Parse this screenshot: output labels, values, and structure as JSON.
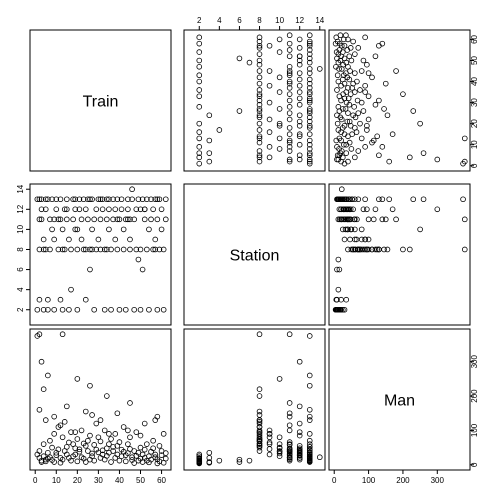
{
  "chart_data": {
    "type": "scatter",
    "subtype": "pairs-matrix",
    "variables": [
      "Train",
      "Station",
      "Man"
    ],
    "ranges": {
      "Train": [
        0,
        62
      ],
      "Station": [
        1,
        14
      ],
      "Man": [
        0,
        380
      ]
    },
    "ticks": {
      "Train": [
        0,
        10,
        20,
        30,
        40,
        50,
        60
      ],
      "Station": [
        2,
        4,
        6,
        8,
        10,
        12,
        14
      ],
      "Man": [
        0,
        100,
        200,
        300
      ]
    },
    "tick_label_sides": {
      "top": [
        "",
        "Station",
        ""
      ],
      "bottom": [
        "Train",
        "",
        "Man"
      ],
      "left": [
        "",
        "Station",
        ""
      ],
      "right": [
        "Train",
        "",
        "Man"
      ]
    },
    "point_symbol": "open-circle",
    "point_color": "#000000",
    "records": [
      [
        1,
        2,
        30
      ],
      [
        2,
        3,
        20
      ],
      [
        2,
        8,
        40
      ],
      [
        3,
        11,
        12
      ],
      [
        3,
        13,
        8
      ],
      [
        4,
        2,
        25
      ],
      [
        4,
        9,
        60
      ],
      [
        5,
        12,
        15
      ],
      [
        5,
        13,
        10
      ],
      [
        6,
        2,
        18
      ],
      [
        6,
        3,
        35
      ],
      [
        7,
        8,
        70
      ],
      [
        7,
        11,
        22
      ],
      [
        8,
        13,
        14
      ],
      [
        8,
        10,
        50
      ],
      [
        9,
        2,
        8
      ],
      [
        9,
        9,
        90
      ],
      [
        10,
        12,
        28
      ],
      [
        10,
        13,
        35
      ],
      [
        11,
        8,
        110
      ],
      [
        11,
        11,
        45
      ],
      [
        12,
        3,
        6
      ],
      [
        12,
        13,
        20
      ],
      [
        13,
        2,
        15
      ],
      [
        13,
        10,
        80
      ],
      [
        14,
        8,
        125
      ],
      [
        14,
        12,
        40
      ],
      [
        15,
        11,
        30
      ],
      [
        15,
        13,
        52
      ],
      [
        16,
        9,
        65
      ],
      [
        16,
        2,
        20
      ],
      [
        17,
        4,
        12
      ],
      [
        17,
        8,
        95
      ],
      [
        18,
        13,
        25
      ],
      [
        18,
        11,
        60
      ],
      [
        19,
        10,
        48
      ],
      [
        19,
        13,
        30
      ],
      [
        20,
        2,
        10
      ],
      [
        20,
        8,
        75
      ],
      [
        21,
        12,
        38
      ],
      [
        21,
        13,
        45
      ],
      [
        22,
        11,
        22
      ],
      [
        22,
        9,
        100
      ],
      [
        23,
        8,
        62
      ],
      [
        23,
        13,
        18
      ],
      [
        24,
        3,
        8
      ],
      [
        24,
        12,
        55
      ],
      [
        25,
        11,
        40
      ],
      [
        25,
        13,
        70
      ],
      [
        26,
        6,
        15
      ],
      [
        26,
        8,
        85
      ],
      [
        27,
        10,
        33
      ],
      [
        27,
        13,
        25
      ],
      [
        28,
        2,
        12
      ],
      [
        28,
        11,
        58
      ],
      [
        29,
        12,
        44
      ],
      [
        29,
        8,
        120
      ],
      [
        30,
        13,
        36
      ],
      [
        30,
        9,
        80
      ],
      [
        31,
        11,
        20
      ],
      [
        31,
        8,
        68
      ],
      [
        32,
        13,
        42
      ],
      [
        32,
        12,
        30
      ],
      [
        33,
        2,
        15
      ],
      [
        33,
        8,
        100
      ],
      [
        34,
        11,
        48
      ],
      [
        34,
        13,
        26
      ],
      [
        35,
        10,
        60
      ],
      [
        35,
        12,
        35
      ],
      [
        36,
        2,
        8
      ],
      [
        36,
        8,
        75
      ],
      [
        37,
        13,
        52
      ],
      [
        37,
        11,
        40
      ],
      [
        38,
        9,
        90
      ],
      [
        38,
        12,
        20
      ],
      [
        39,
        8,
        55
      ],
      [
        39,
        13,
        30
      ],
      [
        40,
        2,
        12
      ],
      [
        40,
        11,
        66
      ],
      [
        41,
        12,
        44
      ],
      [
        41,
        13,
        25
      ],
      [
        42,
        8,
        110
      ],
      [
        42,
        10,
        38
      ],
      [
        43,
        2,
        10
      ],
      [
        43,
        11,
        28
      ],
      [
        44,
        13,
        60
      ],
      [
        44,
        12,
        34
      ],
      [
        45,
        8,
        80
      ],
      [
        45,
        9,
        46
      ],
      [
        46,
        13,
        14
      ],
      [
        46,
        14,
        22
      ],
      [
        47,
        2,
        5
      ],
      [
        47,
        11,
        40
      ],
      [
        48,
        8,
        95
      ],
      [
        48,
        12,
        26
      ],
      [
        49,
        13,
        35
      ],
      [
        49,
        7,
        12
      ],
      [
        50,
        2,
        18
      ],
      [
        50,
        8,
        50
      ],
      [
        51,
        6,
        8
      ],
      [
        51,
        13,
        30
      ],
      [
        52,
        11,
        44
      ],
      [
        52,
        12,
        20
      ],
      [
        53,
        8,
        60
      ],
      [
        53,
        13,
        12
      ],
      [
        54,
        2,
        7
      ],
      [
        54,
        10,
        25
      ],
      [
        55,
        11,
        38
      ],
      [
        55,
        13,
        15
      ],
      [
        56,
        12,
        48
      ],
      [
        56,
        8,
        70
      ],
      [
        57,
        13,
        22
      ],
      [
        57,
        9,
        30
      ],
      [
        58,
        2,
        4
      ],
      [
        58,
        11,
        16
      ],
      [
        59,
        8,
        55
      ],
      [
        59,
        13,
        10
      ],
      [
        60,
        12,
        28
      ],
      [
        60,
        10,
        40
      ],
      [
        61,
        2,
        6
      ],
      [
        61,
        8,
        90
      ],
      [
        62,
        13,
        18
      ],
      [
        62,
        11,
        34
      ],
      [
        1,
        13,
        375
      ],
      [
        2,
        11,
        380
      ],
      [
        3,
        12,
        300
      ],
      [
        4,
        8,
        220
      ],
      [
        6,
        13,
        260
      ],
      [
        13,
        8,
        380
      ],
      [
        20,
        10,
        250
      ],
      [
        26,
        13,
        230
      ],
      [
        34,
        8,
        200
      ],
      [
        45,
        11,
        180
      ],
      [
        2,
        13,
        160
      ],
      [
        9,
        11,
        140
      ],
      [
        15,
        12,
        170
      ],
      [
        24,
        8,
        155
      ],
      [
        31,
        13,
        130
      ],
      [
        39,
        11,
        150
      ],
      [
        52,
        12,
        120
      ],
      [
        58,
        13,
        140
      ],
      [
        5,
        8,
        130
      ],
      [
        12,
        11,
        115
      ],
      [
        19,
        12,
        95
      ],
      [
        27,
        8,
        145
      ],
      [
        35,
        13,
        90
      ],
      [
        44,
        11,
        100
      ],
      [
        50,
        12,
        85
      ],
      [
        57,
        8,
        130
      ]
    ]
  }
}
